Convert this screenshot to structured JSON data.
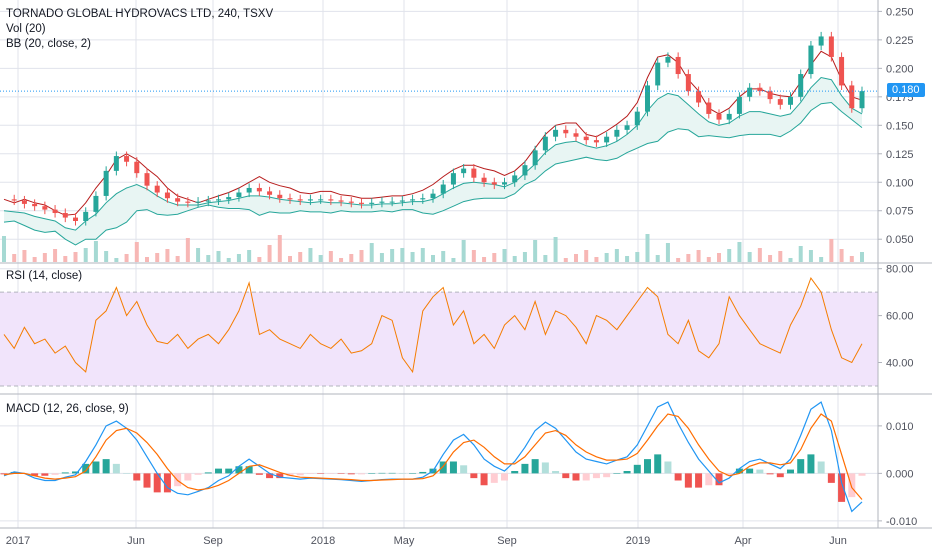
{
  "legend": {
    "title": "TORNADO GLOBAL HYDROVACS LTD, 240, TSXV",
    "vol": "Vol (20)",
    "bb": "BB (20, close, 2)",
    "rsi": "RSI (14, close)",
    "macd": "MACD (12, 26, close, 9)"
  },
  "price_tag": "0.180",
  "colors": {
    "up": "#26a69a",
    "down": "#ef5350",
    "bb_band": "#26a69a",
    "bb_fill": "#e8f5f3",
    "bb_mid": "#b71c1c",
    "rsi_line": "#f57c00",
    "rsi_fill": "#f1e4fb",
    "macd_line": "#2196f3",
    "signal_line": "#ff6d00",
    "grid": "#e0e3eb",
    "axis_text": "#50535e",
    "price_line": "#2196f3"
  },
  "chart_data": [
    {
      "type": "line",
      "title": "TORNADO GLOBAL HYDROVACS LTD, 240, TSXV",
      "x_ticks": [
        "2017",
        "Jun",
        "Sep",
        "2018",
        "May",
        "Sep",
        "2019",
        "Apr",
        "Jun"
      ],
      "y_ticks": [
        "0.050",
        "0.075",
        "0.100",
        "0.125",
        "0.150",
        "0.175",
        "0.200",
        "0.225",
        "0.250"
      ],
      "ylim": [
        0.03,
        0.26
      ],
      "last_price": 0.18,
      "series": [
        {
          "values": [
            0.085,
            0.082,
            0.085,
            0.082,
            0.08,
            0.075,
            0.071,
            0.072,
            0.082,
            0.095,
            0.106,
            0.12,
            0.125,
            0.12,
            0.112,
            0.105,
            0.095,
            0.088,
            0.085,
            0.082,
            0.085,
            0.088,
            0.091,
            0.095,
            0.1,
            0.105,
            0.1,
            0.097,
            0.095,
            0.091,
            0.09,
            0.092,
            0.092,
            0.089,
            0.088,
            0.086,
            0.086,
            0.087,
            0.088,
            0.088,
            0.09,
            0.093,
            0.098,
            0.105,
            0.111,
            0.115,
            0.115,
            0.112,
            0.11,
            0.106,
            0.11,
            0.118,
            0.13,
            0.142,
            0.15,
            0.152,
            0.152,
            0.142,
            0.14,
            0.145,
            0.151,
            0.158,
            0.17,
            0.192,
            0.21,
            0.212,
            0.205,
            0.19,
            0.18,
            0.165,
            0.16,
            0.165,
            0.175,
            0.182,
            0.182,
            0.178,
            0.176,
            0.175,
            0.188,
            0.203,
            0.215,
            0.21,
            0.19,
            0.175,
            0.172
          ]
        },
        {
          "values": [
            0.075,
            0.074,
            0.073,
            0.07,
            0.068,
            0.066,
            0.06,
            0.058,
            0.066,
            0.072,
            0.082,
            0.09,
            0.095,
            0.098,
            0.094,
            0.088,
            0.083,
            0.08,
            0.08,
            0.08,
            0.082,
            0.083,
            0.084,
            0.086,
            0.088,
            0.088,
            0.087,
            0.085,
            0.084,
            0.083,
            0.082,
            0.083,
            0.082,
            0.082,
            0.081,
            0.08,
            0.08,
            0.081,
            0.081,
            0.082,
            0.083,
            0.083,
            0.085,
            0.09,
            0.095,
            0.099,
            0.1,
            0.099,
            0.098,
            0.096,
            0.1,
            0.108,
            0.116,
            0.126,
            0.133,
            0.135,
            0.136,
            0.132,
            0.13,
            0.132,
            0.136,
            0.142,
            0.15,
            0.163,
            0.173,
            0.178,
            0.176,
            0.168,
            0.16,
            0.153,
            0.15,
            0.152,
            0.158,
            0.162,
            0.162,
            0.16,
            0.158,
            0.16,
            0.17,
            0.183,
            0.192,
            0.19,
            0.176,
            0.165,
            0.16
          ]
        },
        {
          "values": [
            0.065,
            0.066,
            0.062,
            0.058,
            0.056,
            0.057,
            0.05,
            0.045,
            0.05,
            0.05,
            0.058,
            0.06,
            0.065,
            0.075,
            0.076,
            0.072,
            0.071,
            0.072,
            0.075,
            0.078,
            0.08,
            0.078,
            0.077,
            0.077,
            0.076,
            0.071,
            0.074,
            0.073,
            0.073,
            0.075,
            0.074,
            0.074,
            0.073,
            0.075,
            0.074,
            0.074,
            0.074,
            0.075,
            0.074,
            0.076,
            0.076,
            0.073,
            0.072,
            0.075,
            0.079,
            0.083,
            0.085,
            0.086,
            0.086,
            0.086,
            0.09,
            0.098,
            0.102,
            0.11,
            0.116,
            0.118,
            0.12,
            0.122,
            0.12,
            0.119,
            0.121,
            0.126,
            0.13,
            0.134,
            0.136,
            0.144,
            0.147,
            0.146,
            0.14,
            0.141,
            0.14,
            0.139,
            0.141,
            0.142,
            0.142,
            0.142,
            0.14,
            0.145,
            0.152,
            0.163,
            0.169,
            0.17,
            0.162,
            0.155,
            0.148
          ]
        },
        {
          "values": [
            0.085,
            0.084,
            0.081,
            0.079,
            0.076,
            0.073,
            0.069,
            0.066,
            0.074,
            0.088,
            0.11,
            0.123,
            0.118,
            0.108,
            0.097,
            0.091,
            0.086,
            0.083,
            0.082,
            0.083,
            0.084,
            0.085,
            0.087,
            0.091,
            0.095,
            0.092,
            0.089,
            0.086,
            0.085,
            0.084,
            0.085,
            0.085,
            0.084,
            0.083,
            0.082,
            0.081,
            0.082,
            0.083,
            0.083,
            0.084,
            0.085,
            0.086,
            0.09,
            0.098,
            0.108,
            0.112,
            0.104,
            0.1,
            0.098,
            0.1,
            0.106,
            0.115,
            0.128,
            0.14,
            0.146,
            0.143,
            0.14,
            0.137,
            0.135,
            0.14,
            0.146,
            0.15,
            0.162,
            0.185,
            0.205,
            0.21,
            0.195,
            0.18,
            0.17,
            0.16,
            0.155,
            0.16,
            0.175,
            0.183,
            0.18,
            0.173,
            0.168,
            0.175,
            0.195,
            0.22,
            0.228,
            0.21,
            0.185,
            0.165,
            0.18
          ]
        }
      ]
    },
    {
      "type": "line",
      "title": "RSI (14, close)",
      "y_ticks": [
        "40.00",
        "60.00",
        "80.00"
      ],
      "ylim": [
        27,
        82
      ],
      "band": [
        30,
        70
      ],
      "series": [
        {
          "values": [
            52,
            46,
            55,
            48,
            50,
            44,
            47,
            40,
            36,
            58,
            62,
            72,
            60,
            66,
            56,
            49,
            48,
            52,
            46,
            50,
            52,
            48,
            54,
            62,
            74,
            52,
            54,
            50,
            48,
            46,
            52,
            48,
            46,
            50,
            44,
            45,
            48,
            60,
            58,
            42,
            36,
            62,
            68,
            72,
            56,
            62,
            48,
            52,
            46,
            56,
            60,
            54,
            66,
            52,
            62,
            60,
            55,
            48,
            60,
            58,
            54,
            60,
            66,
            72,
            68,
            52,
            48,
            58,
            45,
            42,
            48,
            68,
            60,
            54,
            48,
            46,
            44,
            56,
            64,
            76,
            70,
            54,
            42,
            40,
            48
          ]
        }
      ]
    },
    {
      "type": "line",
      "title": "MACD (12, 26, close, 9)",
      "y_ticks": [
        "-0.010",
        "0.000",
        "0.010"
      ],
      "ylim": [
        -0.0115,
        0.0165
      ],
      "series": [
        {
          "values": [
            -0.0005,
            0.0003,
            0.0,
            -0.001,
            -0.0015,
            -0.0015,
            -0.0008,
            -0.0003,
            0.0025,
            0.006,
            0.01,
            0.011,
            0.0095,
            0.007,
            0.0035,
            0.0,
            -0.003,
            -0.0042,
            -0.0045,
            -0.0038,
            -0.003,
            -0.0015,
            -0.0005,
            0.0015,
            0.003,
            0.0015,
            0.0,
            -0.0008,
            -0.001,
            -0.0012,
            -0.001,
            -0.0011,
            -0.0012,
            -0.0013,
            -0.0015,
            -0.0017,
            -0.0015,
            -0.0013,
            -0.0012,
            -0.0012,
            -0.0012,
            -0.0008,
            0.0005,
            0.004,
            0.007,
            0.0082,
            0.006,
            0.003,
            0.0015,
            0.0005,
            0.0025,
            0.0055,
            0.009,
            0.0108,
            0.0095,
            0.007,
            0.0045,
            0.003,
            0.0025,
            0.002,
            0.0028,
            0.0035,
            0.006,
            0.01,
            0.014,
            0.015,
            0.0105,
            0.0065,
            0.003,
            0.0005,
            -0.002,
            -0.001,
            0.001,
            0.0025,
            0.003,
            0.002,
            0.001,
            0.003,
            0.008,
            0.0135,
            0.015,
            0.009,
            -0.002,
            -0.008,
            -0.006
          ]
        },
        {
          "values": [
            -0.0003,
            0.0,
            0.0,
            -0.0005,
            -0.001,
            -0.0012,
            -0.001,
            -0.0007,
            0.0005,
            0.0035,
            0.007,
            0.009,
            0.0095,
            0.0085,
            0.0065,
            0.004,
            0.001,
            -0.0015,
            -0.003,
            -0.0035,
            -0.0032,
            -0.0025,
            -0.0015,
            0.0,
            0.0015,
            0.0018,
            0.001,
            0.0002,
            -0.0004,
            -0.0008,
            -0.0009,
            -0.001,
            -0.0011,
            -0.0012,
            -0.0013,
            -0.0015,
            -0.0015,
            -0.0014,
            -0.0013,
            -0.0012,
            -0.0012,
            -0.0011,
            -0.0005,
            0.0015,
            0.0045,
            0.0065,
            0.007,
            0.0055,
            0.0035,
            0.002,
            0.002,
            0.0035,
            0.006,
            0.0085,
            0.009,
            0.008,
            0.006,
            0.0045,
            0.0035,
            0.0028,
            0.0028,
            0.003,
            0.0042,
            0.007,
            0.01,
            0.0125,
            0.012,
            0.0095,
            0.006,
            0.003,
            0.0005,
            -0.0005,
            0.0,
            0.0015,
            0.0022,
            0.0022,
            0.0018,
            0.0022,
            0.005,
            0.0095,
            0.0125,
            0.011,
            0.004,
            -0.003,
            -0.0055
          ]
        }
      ]
    }
  ],
  "x_labels": [
    "2017",
    "Jun",
    "Sep",
    "2018",
    "May",
    "Sep",
    "2019",
    "Apr",
    "Jun"
  ]
}
